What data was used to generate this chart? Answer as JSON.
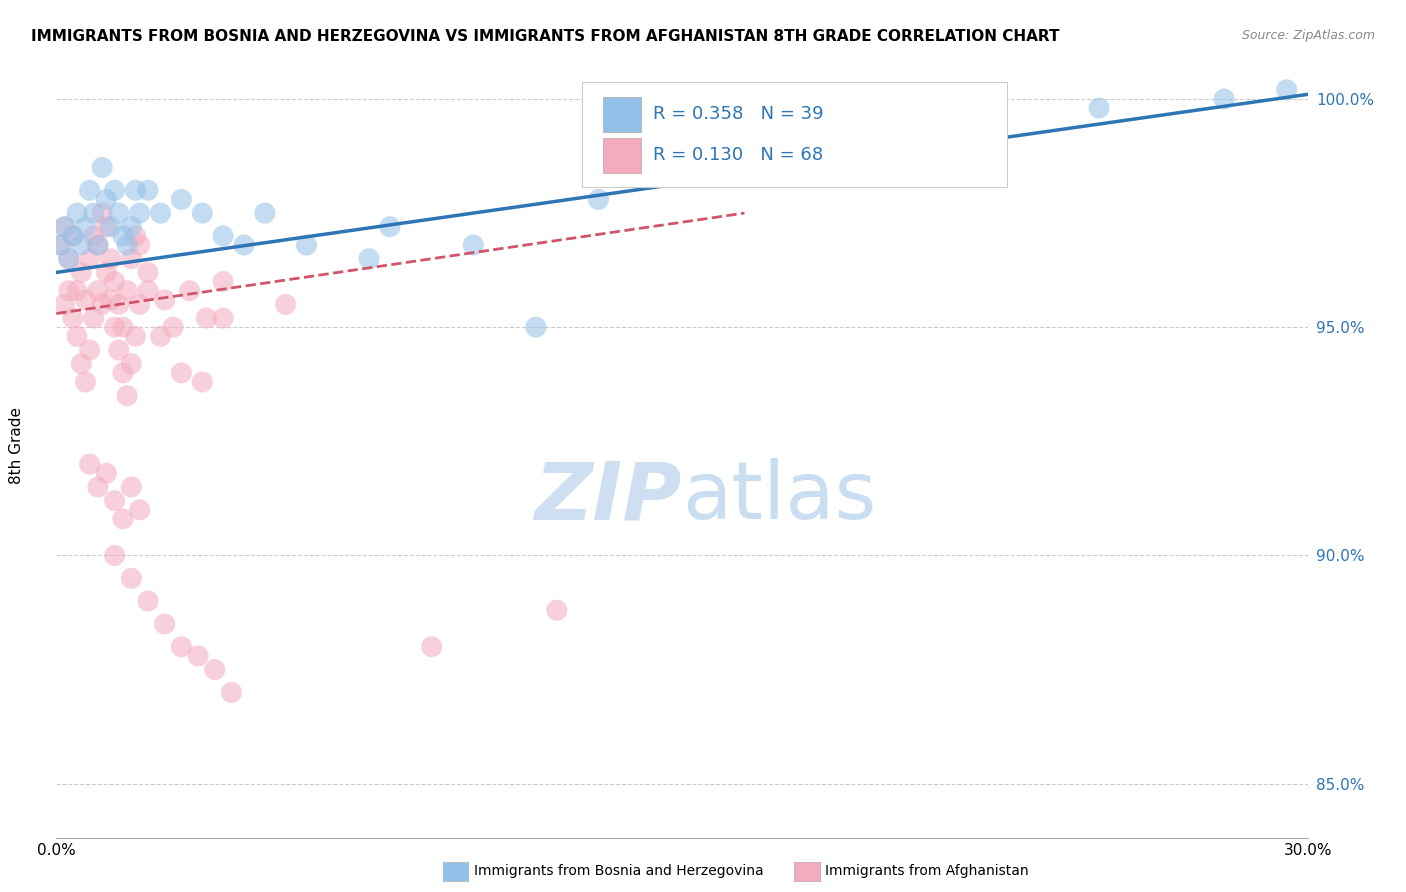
{
  "title": "IMMIGRANTS FROM BOSNIA AND HERZEGOVINA VS IMMIGRANTS FROM AFGHANISTAN 8TH GRADE CORRELATION CHART",
  "source": "Source: ZipAtlas.com",
  "ylabel": "8th Grade",
  "xlim": [
    0.0,
    0.3
  ],
  "ylim": [
    0.838,
    1.008
  ],
  "yticks": [
    0.85,
    0.9,
    0.95,
    1.0
  ],
  "ytick_labels": [
    "85.0%",
    "90.0%",
    "95.0%",
    "100.0%"
  ],
  "xtick_labels": [
    "0.0%",
    "30.0%"
  ],
  "xtick_pos": [
    0.0,
    0.3
  ],
  "legend_blue_text": "R = 0.358   N = 39",
  "legend_pink_text": "R = 0.130   N = 68",
  "legend_label_blue": "Immigrants from Bosnia and Herzegovina",
  "legend_label_pink": "Immigrants from Afghanistan",
  "blue_fill": "#92C0E8",
  "pink_fill": "#F4ABBE",
  "blue_line": "#2E75B6",
  "pink_line": "#D0546A",
  "text_blue": "#2E75B6",
  "blue_line_x0": 0.0,
  "blue_line_x1": 0.3,
  "blue_line_y0": 0.962,
  "blue_line_y1": 1.001,
  "pink_line_x0": 0.0,
  "pink_line_x1": 0.165,
  "pink_line_y0": 0.953,
  "pink_line_y1": 0.975,
  "blue_x": [
    0.001,
    0.002,
    0.003,
    0.004,
    0.005,
    0.006,
    0.007,
    0.008,
    0.009,
    0.01,
    0.011,
    0.012,
    0.013,
    0.014,
    0.015,
    0.016,
    0.017,
    0.018,
    0.019,
    0.02,
    0.022,
    0.025,
    0.03,
    0.035,
    0.04,
    0.05,
    0.06,
    0.08,
    0.1,
    0.13,
    0.16,
    0.19,
    0.22,
    0.25,
    0.28,
    0.295,
    0.075,
    0.045,
    0.115
  ],
  "blue_y": [
    0.968,
    0.972,
    0.965,
    0.97,
    0.975,
    0.968,
    0.972,
    0.98,
    0.975,
    0.968,
    0.985,
    0.978,
    0.972,
    0.98,
    0.975,
    0.97,
    0.968,
    0.972,
    0.98,
    0.975,
    0.98,
    0.975,
    0.978,
    0.975,
    0.97,
    0.975,
    0.968,
    0.972,
    0.968,
    0.978,
    0.985,
    0.992,
    0.995,
    0.998,
    1.0,
    1.002,
    0.965,
    0.968,
    0.95
  ],
  "pink_x": [
    0.001,
    0.002,
    0.003,
    0.004,
    0.005,
    0.006,
    0.007,
    0.008,
    0.009,
    0.01,
    0.011,
    0.012,
    0.013,
    0.014,
    0.015,
    0.016,
    0.017,
    0.018,
    0.019,
    0.02,
    0.002,
    0.003,
    0.004,
    0.005,
    0.006,
    0.007,
    0.008,
    0.009,
    0.01,
    0.011,
    0.012,
    0.013,
    0.014,
    0.015,
    0.016,
    0.017,
    0.018,
    0.019,
    0.02,
    0.022,
    0.025,
    0.03,
    0.035,
    0.04,
    0.022,
    0.026,
    0.028,
    0.032,
    0.036,
    0.04,
    0.008,
    0.01,
    0.012,
    0.014,
    0.016,
    0.018,
    0.02,
    0.055,
    0.014,
    0.018,
    0.022,
    0.026,
    0.03,
    0.034,
    0.038,
    0.042,
    0.09,
    0.12
  ],
  "pink_y": [
    0.968,
    0.972,
    0.965,
    0.97,
    0.958,
    0.962,
    0.956,
    0.965,
    0.97,
    0.968,
    0.975,
    0.972,
    0.965,
    0.96,
    0.955,
    0.95,
    0.958,
    0.965,
    0.97,
    0.968,
    0.955,
    0.958,
    0.952,
    0.948,
    0.942,
    0.938,
    0.945,
    0.952,
    0.958,
    0.955,
    0.962,
    0.956,
    0.95,
    0.945,
    0.94,
    0.935,
    0.942,
    0.948,
    0.955,
    0.958,
    0.948,
    0.94,
    0.938,
    0.952,
    0.962,
    0.956,
    0.95,
    0.958,
    0.952,
    0.96,
    0.92,
    0.915,
    0.918,
    0.912,
    0.908,
    0.915,
    0.91,
    0.955,
    0.9,
    0.895,
    0.89,
    0.885,
    0.88,
    0.878,
    0.875,
    0.87,
    0.88,
    0.888
  ]
}
